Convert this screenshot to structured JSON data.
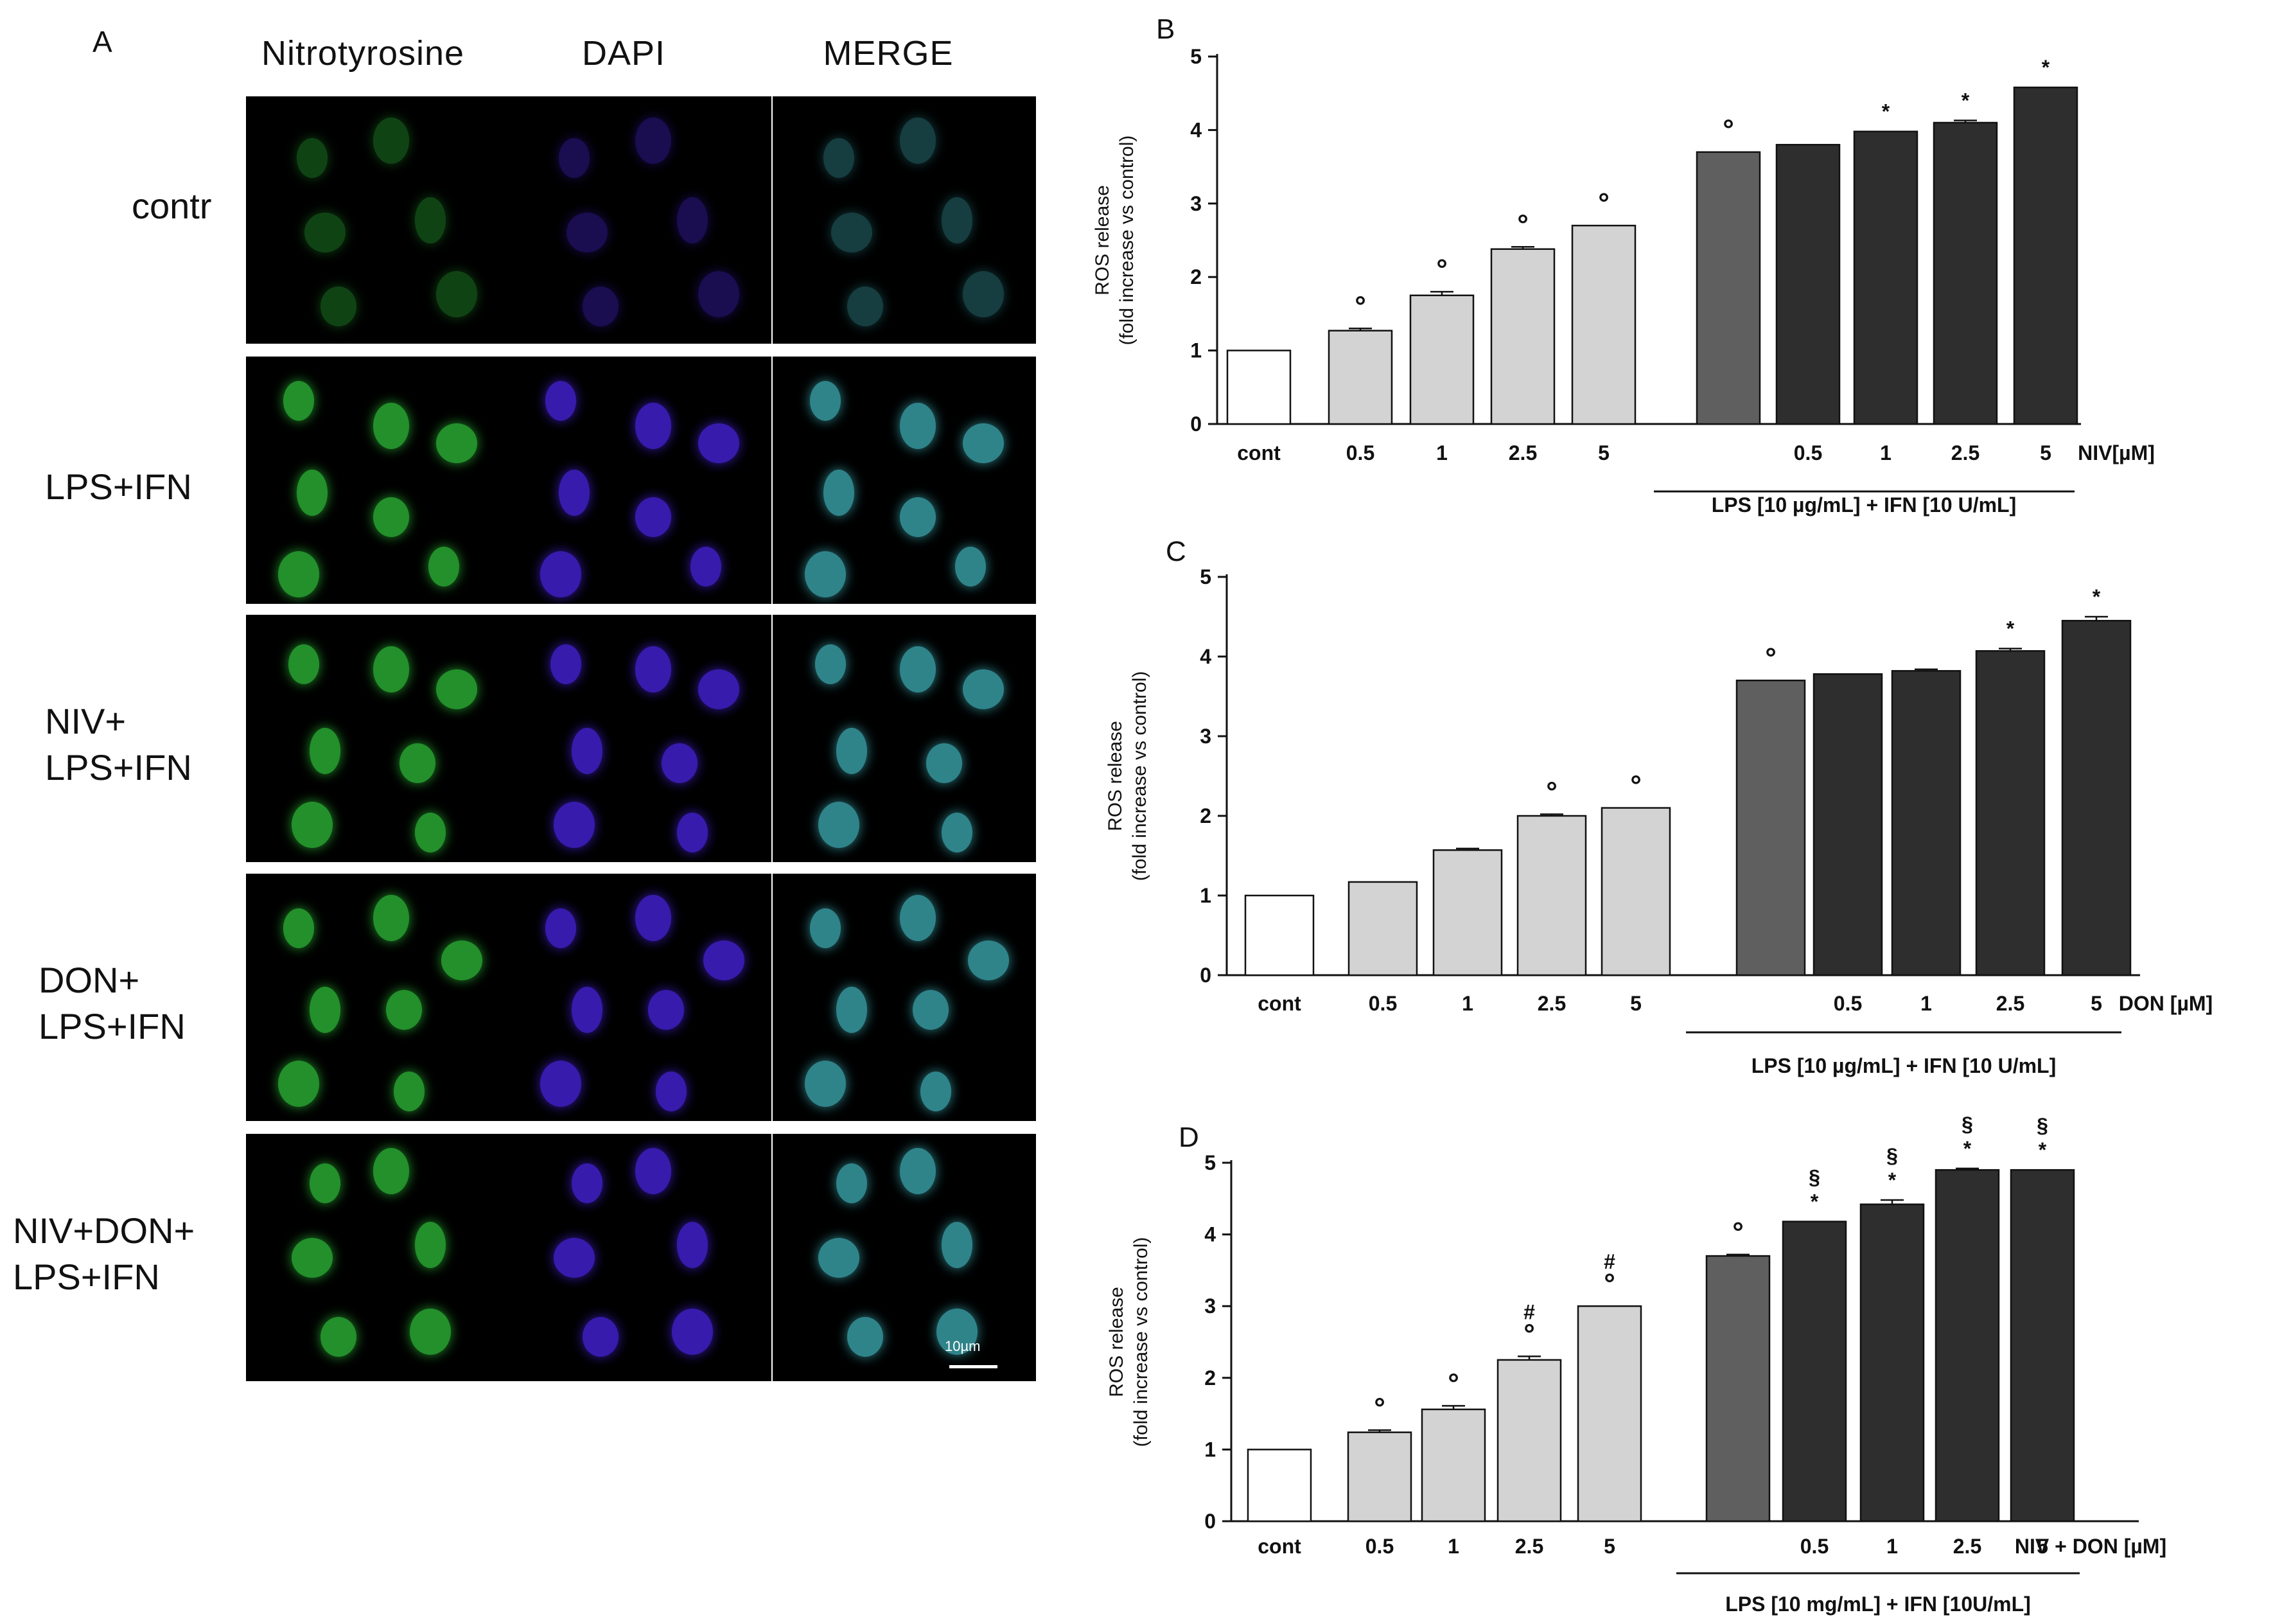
{
  "panelA": {
    "letter": "A",
    "columns": [
      "Nitrotyrosine",
      "DAPI",
      "MERGE"
    ],
    "rows": [
      {
        "label": [
          "contr"
        ]
      },
      {
        "label": [
          "LPS+IFN"
        ]
      },
      {
        "label": [
          "NIV+",
          "LPS+IFN"
        ]
      },
      {
        "label": [
          "DON+",
          "LPS+IFN"
        ]
      },
      {
        "label": [
          "NIV+DON+",
          "LPS+IFN"
        ]
      }
    ],
    "scale_label": "10µm",
    "channel_colors": {
      "nitrotyrosine": "#2fc13a",
      "dapi": "#4a25e6",
      "merge": "#3fb0b8"
    }
  },
  "chart_data": [
    {
      "panel": "B",
      "type": "bar",
      "title": "",
      "ylabel": [
        "ROS release",
        "(fold increase vs control)"
      ],
      "xlabel": "",
      "ylim": [
        0,
        5
      ],
      "yticks": [
        "0",
        "1",
        "2",
        "3",
        "4",
        "5"
      ],
      "categories": [
        "cont",
        "0.5",
        "1",
        "2.5",
        "5",
        "",
        "0.5",
        "1",
        "2.5",
        "5"
      ],
      "unit_label": "NIV[µM]",
      "bracket_label": "LPS [10 µg/mL] + IFN [10 U/mL]",
      "values": [
        1.0,
        1.27,
        1.75,
        2.38,
        2.7,
        3.7,
        3.8,
        3.98,
        4.1,
        4.58
      ],
      "errors": [
        0,
        0.03,
        0.05,
        0.03,
        0,
        0,
        0,
        0,
        0.03,
        0
      ],
      "colors": [
        "#ffffff",
        "#d3d3d3",
        "#d3d3d3",
        "#d3d3d3",
        "#d3d3d3",
        "#5f5f5f",
        "#2e2e2e",
        "#2e2e2e",
        "#2e2e2e",
        "#2e2e2e"
      ],
      "annotations": [
        [],
        [
          "°"
        ],
        [
          "°"
        ],
        [
          "°"
        ],
        [
          "°"
        ],
        [
          "°"
        ],
        [],
        [
          "*"
        ],
        [
          "*"
        ],
        [
          "*"
        ]
      ]
    },
    {
      "panel": "C",
      "type": "bar",
      "title": "",
      "ylabel": [
        "ROS release",
        "(fold increase vs control)"
      ],
      "xlabel": "",
      "ylim": [
        0,
        5
      ],
      "yticks": [
        "0",
        "1",
        "2",
        "3",
        "4",
        "5"
      ],
      "categories": [
        "cont",
        "0.5",
        "1",
        "2.5",
        "5",
        "",
        "0.5",
        "1",
        "2.5",
        "5"
      ],
      "unit_label": "DON [µM]",
      "bracket_label": "LPS [10 µg/mL] + IFN [10 U/mL]",
      "values": [
        1.0,
        1.17,
        1.57,
        2.0,
        2.1,
        3.7,
        3.78,
        3.82,
        4.07,
        4.45
      ],
      "errors": [
        0,
        0,
        0.02,
        0.02,
        0,
        0,
        0,
        0.02,
        0.03,
        0.05
      ],
      "colors": [
        "#ffffff",
        "#d3d3d3",
        "#d3d3d3",
        "#d3d3d3",
        "#d3d3d3",
        "#5f5f5f",
        "#2e2e2e",
        "#2e2e2e",
        "#2e2e2e",
        "#2e2e2e"
      ],
      "annotations": [
        [],
        [],
        [],
        [
          "°"
        ],
        [
          "°"
        ],
        [
          "°"
        ],
        [],
        [],
        [
          "*"
        ],
        [
          "*"
        ]
      ]
    },
    {
      "panel": "D",
      "type": "bar",
      "title": "",
      "ylabel": [
        "ROS release",
        "(fold increase vs control)"
      ],
      "xlabel": "",
      "ylim": [
        0,
        5
      ],
      "yticks": [
        "0",
        "1",
        "2",
        "3",
        "4",
        "5"
      ],
      "categories": [
        "cont",
        "0.5",
        "1",
        "2.5",
        "5",
        "",
        "0.5",
        "1",
        "2.5",
        "5"
      ],
      "unit_label": "NIV + DON [µM]",
      "bracket_label": "LPS [10 mg/mL] + IFN [10U/mL]",
      "values": [
        1.0,
        1.24,
        1.56,
        2.25,
        3.0,
        3.7,
        4.18,
        4.42,
        4.9,
        4.9
      ],
      "errors": [
        0,
        0.03,
        0.05,
        0.05,
        0,
        0.02,
        0,
        0.06,
        0.02,
        0
      ],
      "colors": [
        "#ffffff",
        "#d3d3d3",
        "#d3d3d3",
        "#d3d3d3",
        "#d3d3d3",
        "#5f5f5f",
        "#2e2e2e",
        "#2e2e2e",
        "#2e2e2e",
        "#2e2e2e"
      ],
      "annotations": [
        [],
        [
          "°"
        ],
        [
          "°"
        ],
        [
          "°",
          "#"
        ],
        [
          "°",
          "#"
        ],
        [
          "°"
        ],
        [
          "*",
          "§"
        ],
        [
          "*",
          "§"
        ],
        [
          "*",
          "§"
        ],
        [
          "*",
          "§"
        ]
      ]
    }
  ]
}
